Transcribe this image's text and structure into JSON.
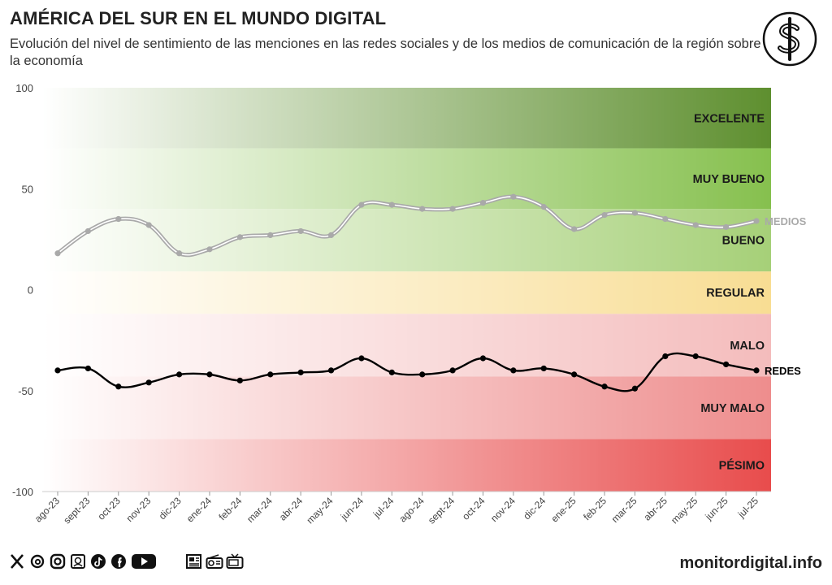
{
  "header": {
    "title": "AMÉRICA DEL SUR EN EL MUNDO DIGITAL",
    "subtitle": "Evolución del nivel de sentimiento de las menciones en las redes sociales y de los medios de comunicación de la región sobre la economía"
  },
  "footer": {
    "brand": "monitordigital.info",
    "social_icons": [
      "x-icon",
      "threads-icon",
      "instagram-icon",
      "news-icon",
      "tiktok-icon",
      "facebook-icon",
      "youtube-icon"
    ],
    "media_icons": [
      "newspaper-icon",
      "radio-icon",
      "tv-icon"
    ]
  },
  "colors": {
    "medios": "#a9a9a9",
    "redes": "#000000",
    "excelente": "#5e8f2f",
    "muy_bueno": "#86c04e",
    "bueno": "#a6d078",
    "regular": "#f8dd93",
    "malo": "#f4bcbc",
    "muy_malo": "#ee8d8d",
    "pesimo": "#e84c4c"
  },
  "chart_data": {
    "type": "line",
    "title": "AMÉRICA DEL SUR EN EL MUNDO DIGITAL",
    "xlabel": "",
    "ylabel": "",
    "ylim": [
      -100,
      100
    ],
    "yticks": [
      100,
      50,
      0,
      -50,
      -100
    ],
    "categories": [
      "ago-23",
      "sept-23",
      "oct-23",
      "nov-23",
      "dic-23",
      "ene-24",
      "feb-24",
      "mar-24",
      "abr-24",
      "may-24",
      "jun-24",
      "jul-24",
      "ago-24",
      "sept-24",
      "oct-24",
      "nov-24",
      "dic-24",
      "ene-25",
      "feb-25",
      "mar-25",
      "abr-25",
      "may-25",
      "jun-25",
      "jul-25"
    ],
    "bands": [
      {
        "label": "EXCELENTE",
        "from": 70,
        "to": 100
      },
      {
        "label": "MUY BUENO",
        "from": 40,
        "to": 70
      },
      {
        "label": "BUENO",
        "from": 9,
        "to": 40
      },
      {
        "label": "REGULAR",
        "from": -12,
        "to": 9
      },
      {
        "label": "MALO",
        "from": -43,
        "to": -12
      },
      {
        "label": "MUY MALO",
        "from": -74,
        "to": -43
      },
      {
        "label": "PÉSIMO",
        "from": -100,
        "to": -74
      }
    ],
    "series": [
      {
        "name": "MEDIOS",
        "values": [
          18,
          29,
          35,
          32,
          18,
          20,
          26,
          27,
          29,
          27,
          42,
          42,
          40,
          40,
          43,
          46,
          41,
          30,
          37,
          38,
          35,
          32,
          31,
          34
        ]
      },
      {
        "name": "REDES",
        "values": [
          -40,
          -39,
          -48,
          -46,
          -42,
          -42,
          -45,
          -42,
          -41,
          -40,
          -34,
          -41,
          -42,
          -40,
          -34,
          -40,
          -39,
          -42,
          -48,
          -49,
          -33,
          -33,
          -37,
          -40
        ]
      }
    ]
  }
}
